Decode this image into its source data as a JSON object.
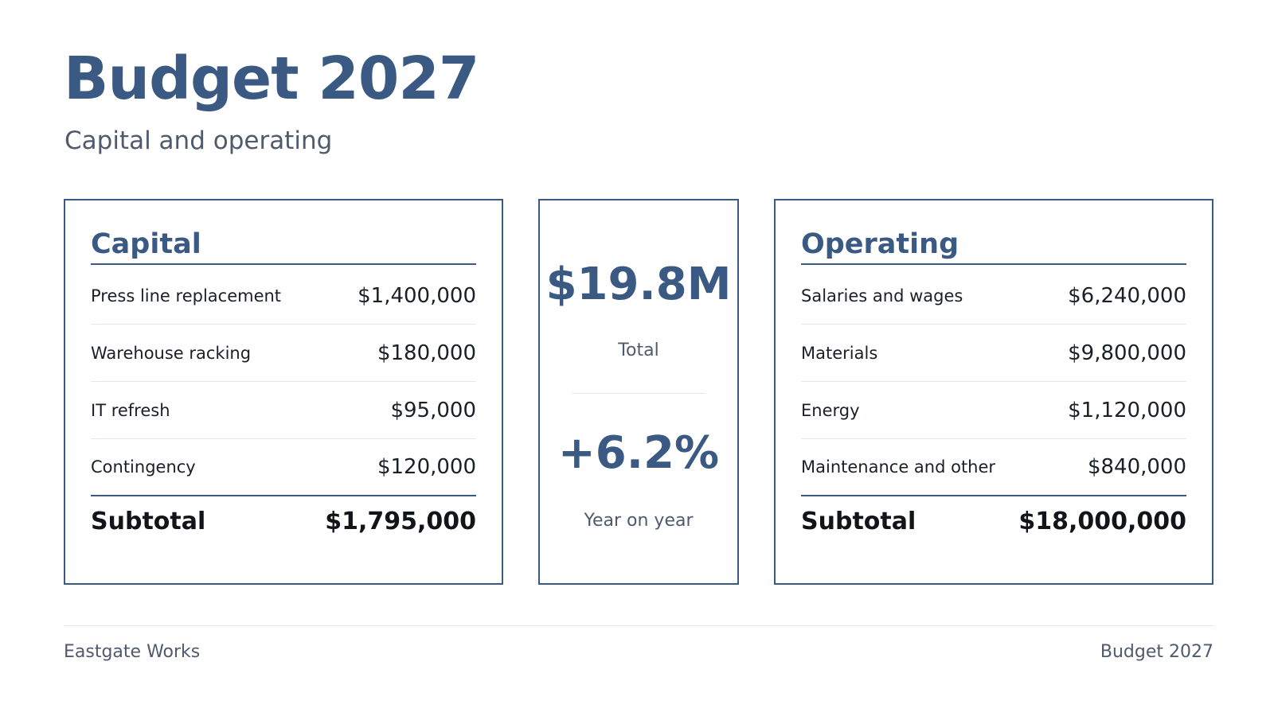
{
  "header": {
    "title": "Budget 2027",
    "subtitle": "Capital and operating"
  },
  "capital": {
    "heading": "Capital",
    "items": [
      {
        "label": "Press line replacement",
        "value": "$1,400,000"
      },
      {
        "label": "Warehouse racking",
        "value": "$180,000"
      },
      {
        "label": "IT refresh",
        "value": "$95,000"
      },
      {
        "label": "Contingency",
        "value": "$120,000"
      }
    ],
    "subtotal_label": "Subtotal",
    "subtotal_value": "$1,795,000"
  },
  "summary": {
    "total_value": "$19.8M",
    "total_label": "Total",
    "change_value": "+6.2%",
    "change_label": "Year on year"
  },
  "operating": {
    "heading": "Operating",
    "items": [
      {
        "label": "Salaries and wages",
        "value": "$6,240,000"
      },
      {
        "label": "Materials",
        "value": "$9,800,000"
      },
      {
        "label": "Energy",
        "value": "$1,120,000"
      },
      {
        "label": "Maintenance and other",
        "value": "$840,000"
      }
    ],
    "subtotal_label": "Subtotal",
    "subtotal_value": "$18,000,000"
  },
  "footer": {
    "left": "Eastgate Works",
    "right": "Budget 2027"
  },
  "colors": {
    "accent": "#3a5a84",
    "text": "#1b1f27",
    "muted": "#4f5b6d",
    "divider": "#e3e6ea"
  }
}
